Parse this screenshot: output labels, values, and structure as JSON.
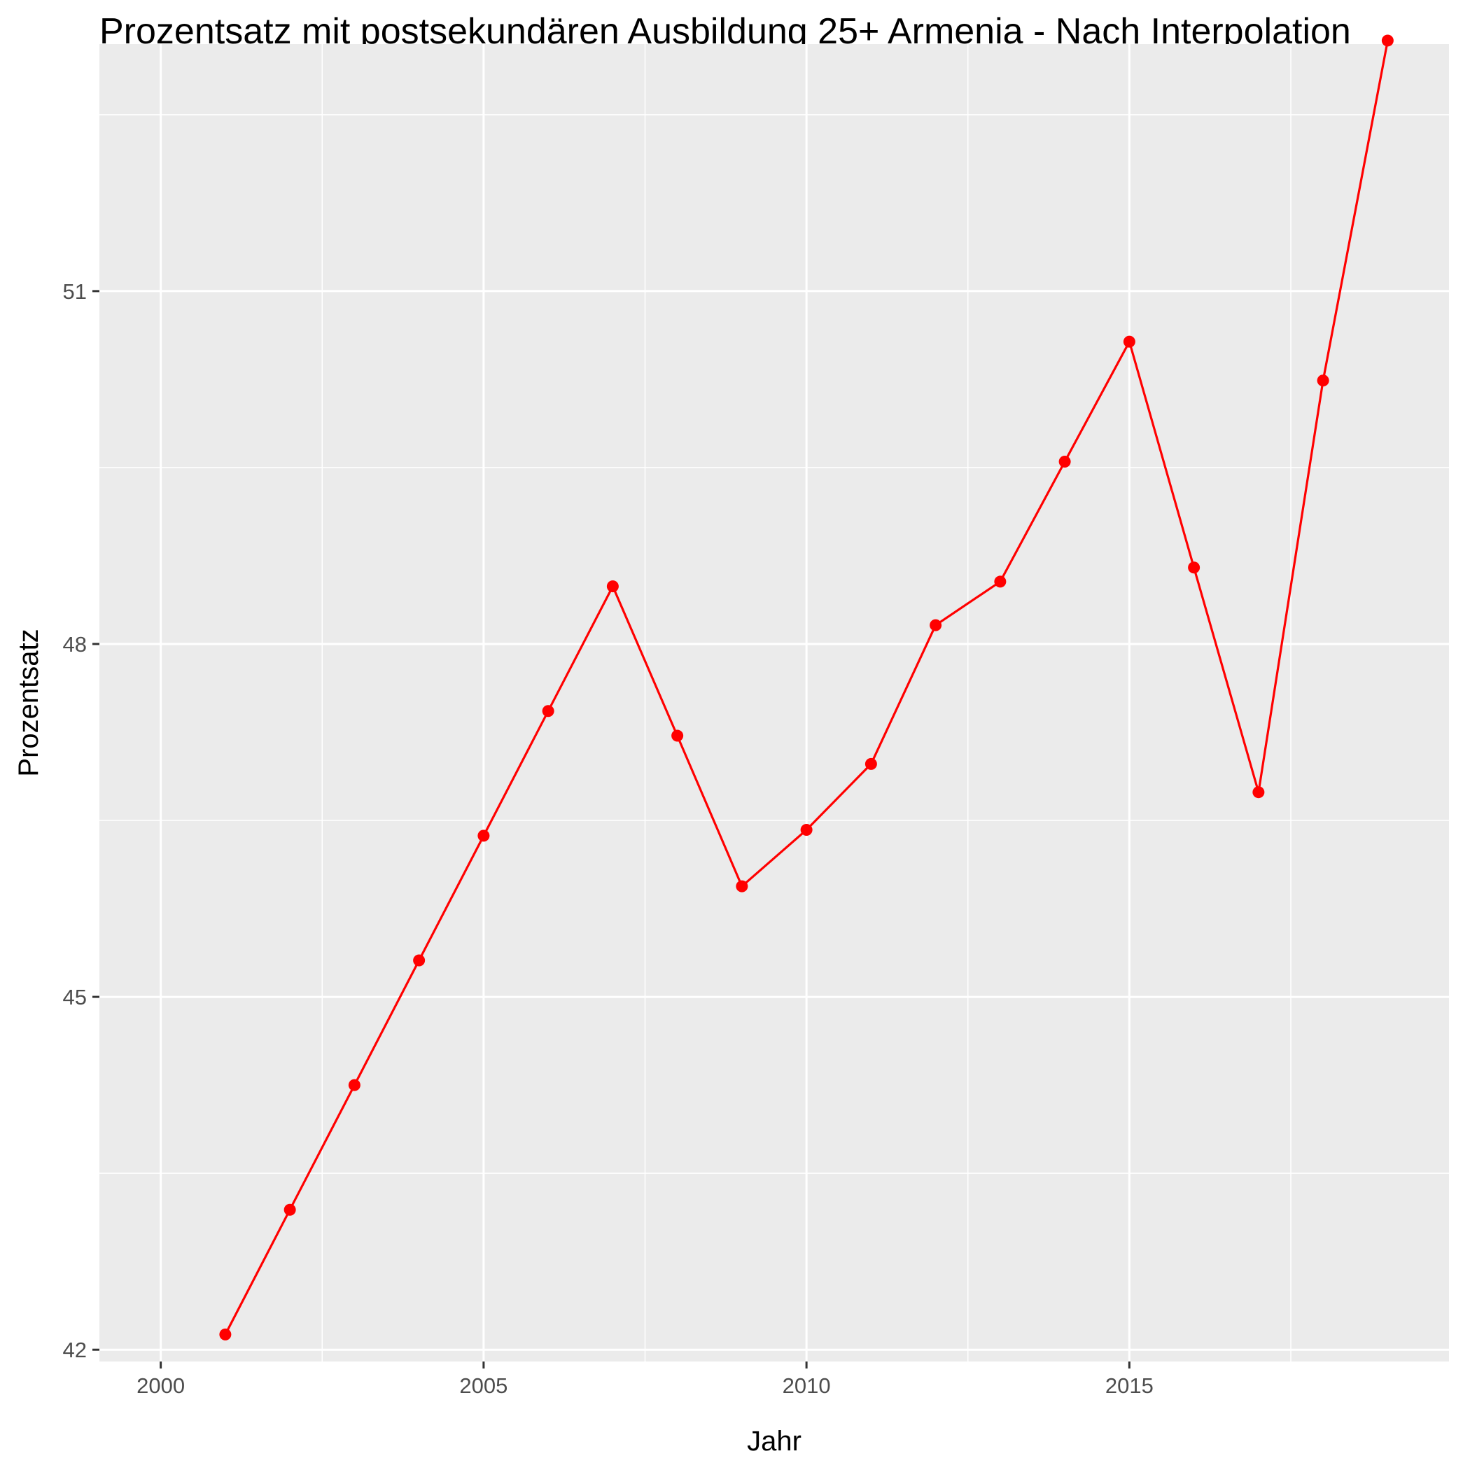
{
  "chart_data": {
    "type": "line",
    "title": "Prozentsatz mit postsekundären Ausbildung 25+ Armenia - Nach Interpolation",
    "xlabel": "Jahr",
    "ylabel": "Prozentsatz",
    "xlim": [
      1999.05,
      2019.95
    ],
    "ylim": [
      41.9,
      53.1
    ],
    "x_ticks": [
      2000,
      2005,
      2010,
      2015
    ],
    "x_tick_labels": [
      "2000",
      "2005",
      "2010",
      "2015"
    ],
    "x_minor_ticks": [
      2002.5,
      2007.5,
      2012.5,
      2017.5
    ],
    "y_ticks": [
      42,
      45,
      48,
      51
    ],
    "y_tick_labels": [
      "42",
      "45",
      "48",
      "51"
    ],
    "y_minor_ticks": [
      43.5,
      46.5,
      49.5,
      52.5
    ],
    "grid": true,
    "legend": "none",
    "colors": {
      "panel": "#ebebeb",
      "grid": "#ffffff",
      "series": "#ff0000",
      "tick": "#333333"
    },
    "series": [
      {
        "x": [
          2001,
          2002,
          2003,
          2004,
          2005,
          2006,
          2007,
          2008,
          2009,
          2010,
          2011,
          2012,
          2013,
          2014,
          2015,
          2016,
          2017,
          2018,
          2019
        ],
        "values": [
          42.13,
          43.19,
          44.25,
          45.31,
          46.37,
          47.43,
          48.49,
          47.22,
          45.94,
          46.42,
          46.98,
          48.16,
          48.53,
          49.55,
          50.57,
          48.65,
          46.74,
          50.24,
          53.13
        ]
      }
    ]
  }
}
